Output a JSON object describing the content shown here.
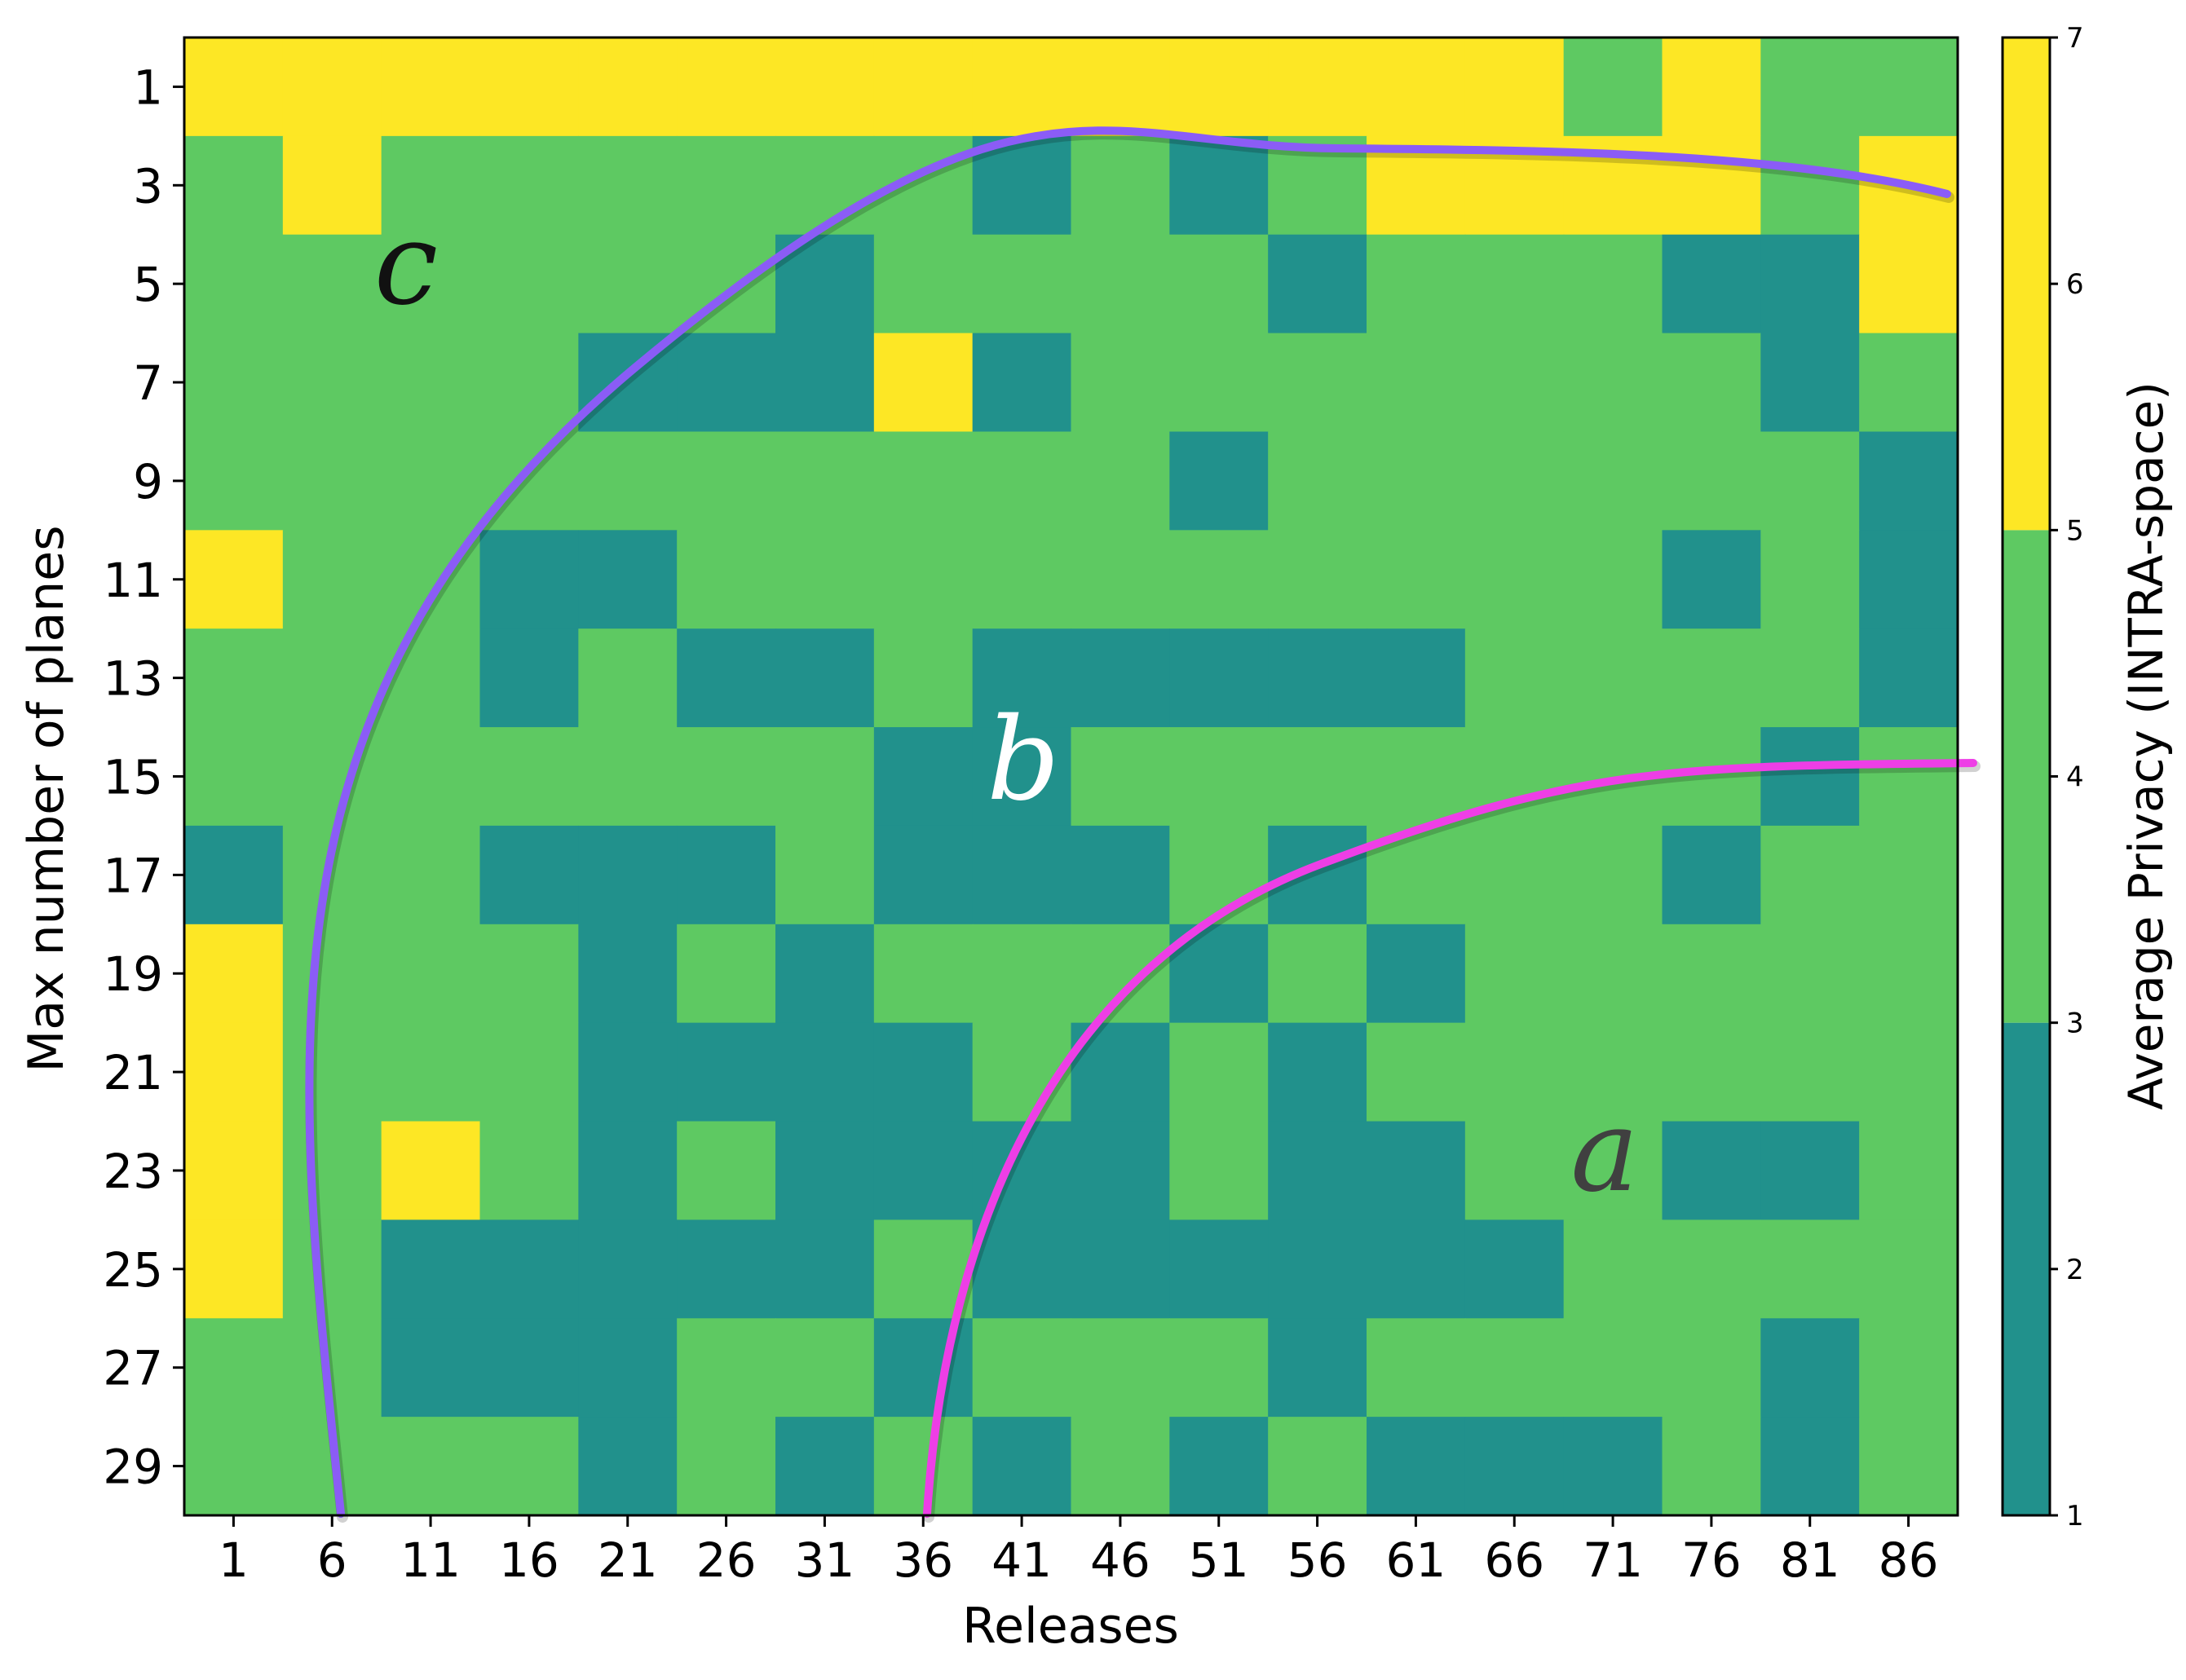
{
  "chart_data": {
    "type": "heatmap",
    "xlabel": "Releases",
    "ylabel": "Max number of planes",
    "x_tick_labels": [
      "1",
      "6",
      "11",
      "16",
      "21",
      "26",
      "31",
      "36",
      "41",
      "46",
      "51",
      "56",
      "61",
      "66",
      "71",
      "76",
      "81",
      "86"
    ],
    "y_tick_labels": [
      "1",
      "3",
      "5",
      "7",
      "9",
      "11",
      "13",
      "15",
      "17",
      "19",
      "21",
      "23",
      "25",
      "27",
      "29"
    ],
    "colorbar": {
      "label": "Average Privacy (INTRA-space)",
      "range": [
        1,
        7
      ],
      "ticks": [
        "1",
        "2",
        "3",
        "4",
        "5",
        "6",
        "7"
      ],
      "bins": [
        {
          "from": 1,
          "to": 3,
          "color": "#21918c"
        },
        {
          "from": 3,
          "to": 5,
          "color": "#5ec962"
        },
        {
          "from": 5,
          "to": 7,
          "color": "#fde725"
        }
      ]
    },
    "cell_level_meaning": {
      "0": "1-3",
      "1": "3-5",
      "2": "5-7"
    },
    "values": [
      [
        2,
        2,
        2,
        2,
        2,
        2,
        2,
        2,
        2,
        2,
        2,
        2,
        2,
        2,
        1,
        2,
        1,
        1
      ],
      [
        1,
        2,
        1,
        1,
        1,
        1,
        1,
        1,
        0,
        1,
        0,
        1,
        2,
        2,
        2,
        2,
        1,
        2
      ],
      [
        1,
        1,
        1,
        1,
        1,
        1,
        0,
        1,
        1,
        1,
        1,
        0,
        1,
        1,
        1,
        0,
        0,
        2
      ],
      [
        1,
        1,
        1,
        1,
        0,
        0,
        0,
        2,
        0,
        1,
        1,
        1,
        1,
        1,
        1,
        1,
        0,
        1
      ],
      [
        1,
        1,
        1,
        1,
        1,
        1,
        1,
        1,
        1,
        1,
        0,
        1,
        1,
        1,
        1,
        1,
        1,
        0
      ],
      [
        2,
        1,
        1,
        0,
        0,
        1,
        1,
        1,
        1,
        1,
        1,
        1,
        1,
        1,
        1,
        0,
        1,
        0
      ],
      [
        1,
        1,
        1,
        0,
        1,
        0,
        0,
        1,
        0,
        0,
        0,
        0,
        0,
        1,
        1,
        1,
        1,
        0
      ],
      [
        1,
        1,
        1,
        1,
        1,
        1,
        1,
        0,
        0,
        1,
        1,
        1,
        1,
        1,
        1,
        1,
        0,
        1
      ],
      [
        0,
        1,
        1,
        0,
        0,
        0,
        1,
        0,
        0,
        0,
        1,
        0,
        1,
        1,
        1,
        0,
        1,
        1
      ],
      [
        2,
        1,
        1,
        1,
        0,
        1,
        0,
        1,
        1,
        1,
        0,
        1,
        0,
        1,
        1,
        1,
        1,
        1
      ],
      [
        2,
        1,
        1,
        1,
        0,
        0,
        0,
        0,
        1,
        0,
        1,
        0,
        1,
        1,
        1,
        1,
        1,
        1
      ],
      [
        2,
        1,
        2,
        1,
        0,
        1,
        0,
        0,
        0,
        0,
        1,
        0,
        0,
        1,
        1,
        0,
        0,
        1
      ],
      [
        2,
        1,
        0,
        0,
        0,
        0,
        0,
        1,
        0,
        0,
        0,
        0,
        0,
        0,
        1,
        1,
        1,
        1
      ],
      [
        1,
        1,
        0,
        0,
        0,
        1,
        1,
        0,
        1,
        1,
        1,
        0,
        1,
        1,
        1,
        1,
        0,
        1
      ],
      [
        1,
        1,
        1,
        1,
        0,
        1,
        0,
        1,
        0,
        1,
        0,
        1,
        0,
        0,
        0,
        1,
        0,
        1
      ]
    ],
    "annotations": [
      {
        "text": "a",
        "color": "#404040"
      },
      {
        "text": "b",
        "color": "#ffffff"
      },
      {
        "text": "c",
        "color": "#111111"
      }
    ],
    "curves": [
      {
        "name": "",
        "color": "#8b5cf6"
      },
      {
        "name": "",
        "color": "#ee3ee6"
      }
    ]
  }
}
